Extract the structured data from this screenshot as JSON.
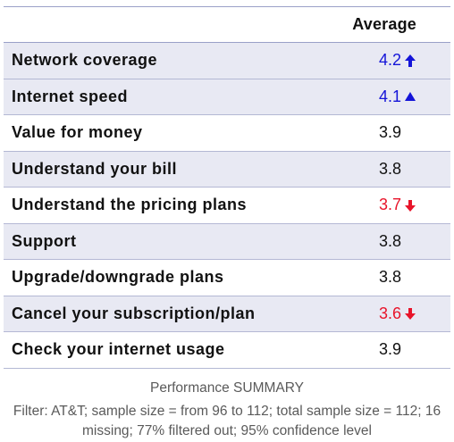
{
  "table": {
    "header": {
      "label": "",
      "average": "Average"
    },
    "rows": [
      {
        "label": "Network coverage",
        "value": "4.2",
        "trend": "up",
        "arrow_style": "solid",
        "shaded": true
      },
      {
        "label": "Internet speed",
        "value": "4.1",
        "trend": "up",
        "arrow_style": "tri",
        "shaded": true
      },
      {
        "label": "Value for money",
        "value": "3.9",
        "trend": "none",
        "shaded": false
      },
      {
        "label": "Understand your bill",
        "value": "3.8",
        "trend": "none",
        "shaded": true
      },
      {
        "label": "Understand the pricing plans",
        "value": "3.7",
        "trend": "down",
        "shaded": false
      },
      {
        "label": "Support",
        "value": "3.8",
        "trend": "none",
        "shaded": true
      },
      {
        "label": "Upgrade/downgrade plans",
        "value": "3.8",
        "trend": "none",
        "shaded": false
      },
      {
        "label": "Cancel your subscription/plan",
        "value": "3.6",
        "trend": "down",
        "shaded": true
      },
      {
        "label": "Check your internet usage",
        "value": "3.9",
        "trend": "none",
        "shaded": false
      }
    ]
  },
  "caption": {
    "title": "Performance SUMMARY",
    "filter": "Filter: AT&T; sample size = from 96 to 112; total sample size = 112; 16 missing; 77% filtered out; 95% confidence level"
  },
  "colors": {
    "up": "#1414d8",
    "down": "#e8142a",
    "shaded_row": "#e8e9f3",
    "border": "#9aa0c8"
  }
}
